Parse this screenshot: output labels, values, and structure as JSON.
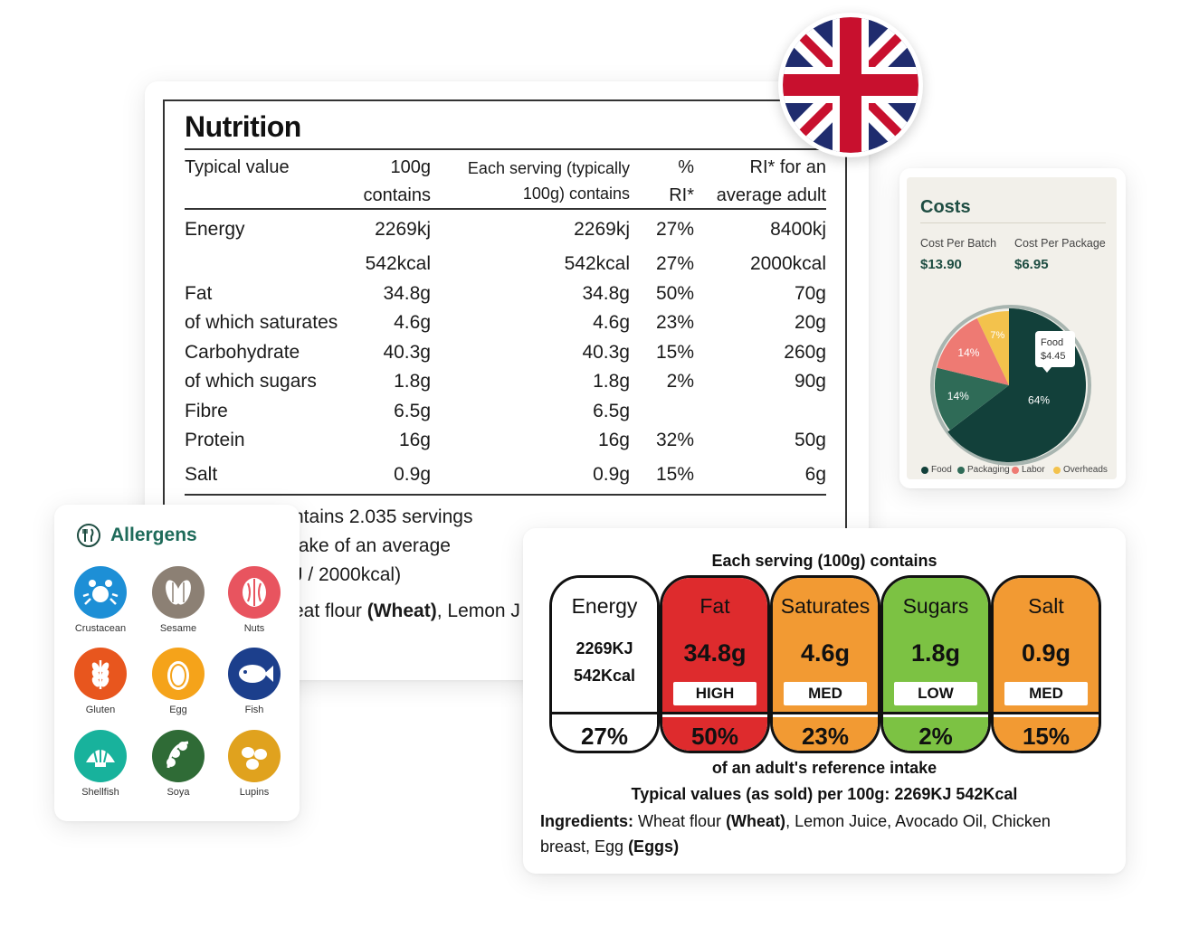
{
  "nutrition": {
    "title": "Nutrition",
    "headers": {
      "typical_value": "Typical value",
      "per100_line1": "100g",
      "per100_line2": "contains",
      "serving_line1": "Each serving (typically",
      "serving_line2": "100g) contains",
      "ri_pct_line1": "%",
      "ri_pct_line2": "RI*",
      "ri_line1": "RI* for an",
      "ri_line2": "average adult"
    },
    "rows": [
      {
        "name": "Energy",
        "per100": "2269kj",
        "serving": "2269kj",
        "pct": "27%",
        "ri": "8400kj"
      },
      {
        "name": "",
        "per100": "542kcal",
        "serving": "542kcal",
        "pct": "27%",
        "ri": "2000kcal"
      },
      {
        "name": "Fat",
        "per100": "34.8g",
        "serving": "34.8g",
        "pct": "50%",
        "ri": "70g"
      },
      {
        "name": "of which saturates",
        "per100": "4.6g",
        "serving": "4.6g",
        "pct": "23%",
        "ri": "20g"
      },
      {
        "name": "Carbohydrate",
        "per100": "40.3g",
        "serving": "40.3g",
        "pct": "15%",
        "ri": "260g"
      },
      {
        "name": "of which sugars",
        "per100": "1.8g",
        "serving": "1.8g",
        "pct": "2%",
        "ri": "90g"
      },
      {
        "name": "Fibre",
        "per100": "6.5g",
        "serving": "6.5g",
        "pct": "",
        "ri": ""
      },
      {
        "name": "Protein",
        "per100": "16g",
        "serving": "16g",
        "pct": "32%",
        "ri": "50g"
      },
      {
        "name": "Salt",
        "per100": "0.9g",
        "serving": "0.9g",
        "pct": "15%",
        "ri": "6g"
      }
    ],
    "footer": {
      "line1": "ntains 2.035 servings",
      "line2": "take of an average",
      "line3": "J / 2000kcal)",
      "line4_a": "eat flour ",
      "line4_b": "(Wheat)",
      "line4_c": ", Lemon J"
    }
  },
  "flag": {
    "name": "uk-flag-icon"
  },
  "costs": {
    "title": "Costs",
    "batch_label": "Cost Per Batch",
    "batch_value": "$13.90",
    "package_label": "Cost Per Package",
    "package_value": "$6.95",
    "tooltip_label": "Food",
    "tooltip_value": "$4.45"
  },
  "chart_data": {
    "type": "pie",
    "slices": [
      {
        "label": "Food",
        "value": 64,
        "color": "#12403a",
        "text": "64%"
      },
      {
        "label": "Packaging",
        "value": 14,
        "color": "#2f6b57",
        "text": "14%"
      },
      {
        "label": "Labor",
        "value": 14,
        "color": "#ee7a73",
        "text": "14%"
      },
      {
        "label": "Overheads",
        "value": 7,
        "color": "#f3c24c",
        "text": "7%"
      }
    ],
    "legend": [
      "Food",
      "Packaging",
      "Labor",
      "Overheads"
    ],
    "legend_position": "bottom"
  },
  "allergens": {
    "title": "Allergens",
    "items": [
      {
        "label": "Crustacean",
        "icon": "crab-icon",
        "color": "#1d8fd6"
      },
      {
        "label": "Sesame",
        "icon": "sesame-seed-icon",
        "color": "#8c8074"
      },
      {
        "label": "Nuts",
        "icon": "nut-icon",
        "color": "#e8545f"
      },
      {
        "label": "Gluten",
        "icon": "wheat-icon",
        "color": "#e8561e"
      },
      {
        "label": "Egg",
        "icon": "egg-icon",
        "color": "#f5a31a"
      },
      {
        "label": "Fish",
        "icon": "fish-icon",
        "color": "#1c3f8c"
      },
      {
        "label": "Shellfish",
        "icon": "shell-icon",
        "color": "#18b29c"
      },
      {
        "label": "Soya",
        "icon": "soy-bean-icon",
        "color": "#2f6b36"
      },
      {
        "label": "Lupins",
        "icon": "lupin-icon",
        "color": "#e0a21e"
      }
    ]
  },
  "front_of_pack": {
    "heading": "Each serving (100g) contains",
    "pills": [
      {
        "name": "Energy",
        "line1": "2269KJ",
        "line2": "542Kcal",
        "pct": "27%",
        "color": "#ffffff",
        "bottom": "#ffffff"
      },
      {
        "name": "Fat",
        "value": "34.8g",
        "level": "HIGH",
        "pct": "50%",
        "color": "#de2b2d",
        "bottom": "#de2b2d"
      },
      {
        "name": "Saturates",
        "value": "4.6g",
        "level": "MED",
        "pct": "23%",
        "color": "#f29a33",
        "bottom": "#f29a33"
      },
      {
        "name": "Sugars",
        "value": "1.8g",
        "level": "LOW",
        "pct": "2%",
        "color": "#7cc243",
        "bottom": "#7cc243"
      },
      {
        "name": "Salt",
        "value": "0.9g",
        "level": "MED",
        "pct": "15%",
        "color": "#f29a33",
        "bottom": "#f29a33"
      }
    ],
    "reference": "of an adult's reference intake",
    "typical": "Typical values (as sold) per 100g: 2269KJ 542Kcal",
    "ingredients_label": "Ingredients:",
    "ingredients_1": " Wheat flour ",
    "ingredients_wheat": "(Wheat)",
    "ingredients_2": ", Lemon Juice, Avocado Oil, Chicken breast, Egg ",
    "ingredients_eggs": "(Eggs)"
  }
}
